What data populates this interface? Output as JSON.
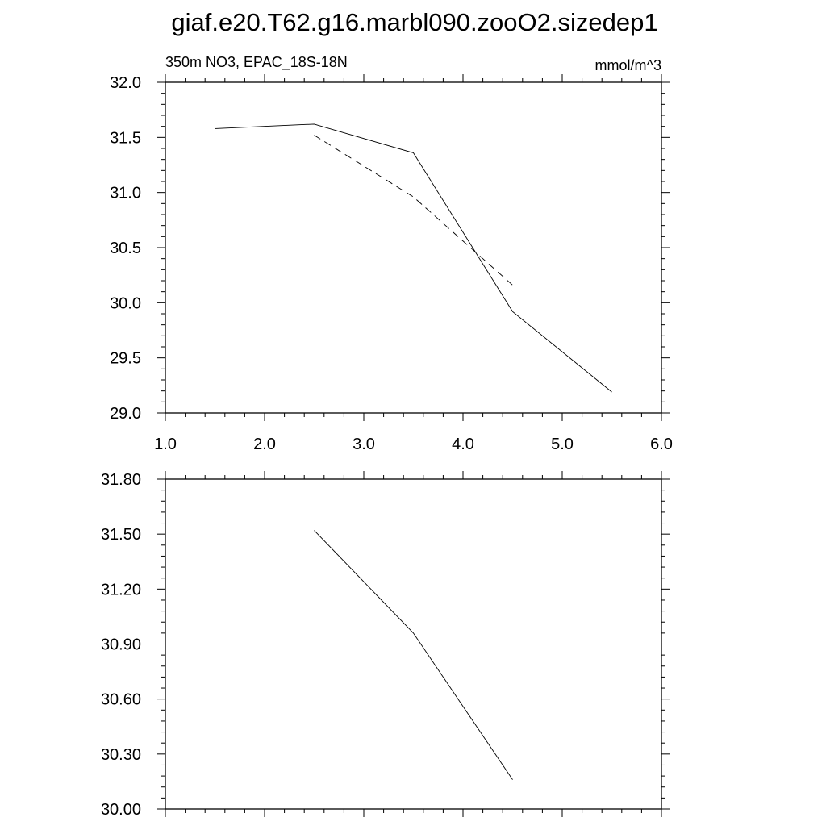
{
  "page": {
    "title": "giaf.e20.T62.g16.marbl090.zooO2.sizedep1"
  },
  "colors": {
    "line": "#000000",
    "background": "#ffffff"
  },
  "chart_data": [
    {
      "type": "line",
      "title": "",
      "left_string": "350m NO3, EPAC_18S-18N",
      "right_string": "mmol/m^3",
      "xlabel": "",
      "ylabel": "",
      "xlim": [
        1.0,
        6.0
      ],
      "ylim": [
        29.0,
        32.0
      ],
      "x_ticks": [
        "1.0",
        "2.0",
        "3.0",
        "4.0",
        "5.0",
        "6.0"
      ],
      "y_ticks": [
        "29.0",
        "29.5",
        "30.0",
        "30.5",
        "31.0",
        "31.5",
        "32.0"
      ],
      "x_tick_values": [
        1,
        2,
        3,
        4,
        5,
        6
      ],
      "y_tick_values": [
        29.0,
        29.5,
        30.0,
        30.5,
        31.0,
        31.5,
        32.0
      ],
      "grid": false,
      "series": [
        {
          "style": "solid",
          "x": [
            1.5,
            2.5,
            3.5,
            4.5,
            5.5
          ],
          "y": [
            31.58,
            31.62,
            31.36,
            29.92,
            29.19
          ]
        },
        {
          "style": "dashed",
          "x": [
            2.5,
            3.5,
            4.5
          ],
          "y": [
            31.52,
            30.96,
            30.16
          ]
        }
      ]
    },
    {
      "type": "line",
      "title": "",
      "xlabel": "",
      "ylabel": "",
      "xlim": [
        1.0,
        6.0
      ],
      "ylim": [
        30.0,
        31.8
      ],
      "x_ticks": [],
      "y_ticks": [
        "30.00",
        "30.30",
        "30.60",
        "30.90",
        "31.20",
        "31.50",
        "31.80"
      ],
      "x_tick_values": [
        1,
        2,
        3,
        4,
        5,
        6
      ],
      "y_tick_values": [
        30.0,
        30.3,
        30.6,
        30.9,
        31.2,
        31.5,
        31.8
      ],
      "grid": false,
      "series": [
        {
          "style": "solid",
          "x": [
            2.5,
            3.5,
            4.5
          ],
          "y": [
            31.52,
            30.96,
            30.16
          ]
        }
      ]
    }
  ]
}
